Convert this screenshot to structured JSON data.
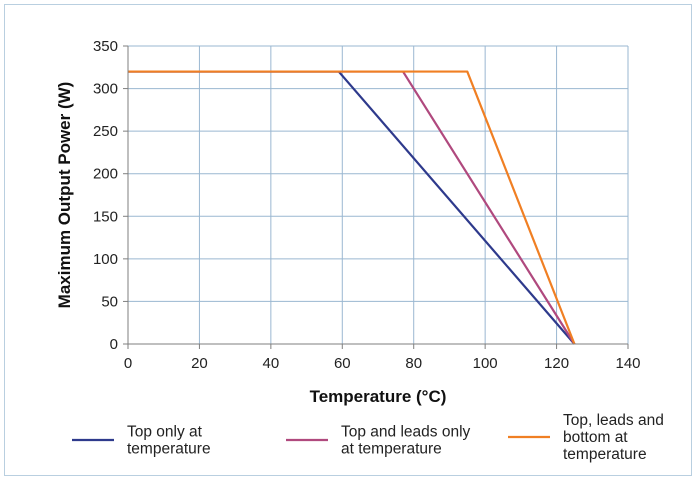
{
  "chart_data": {
    "type": "line",
    "xlabel": "Temperature (°C)",
    "ylabel": "Maximum Output Power (W)",
    "xlim": [
      0,
      140
    ],
    "ylim": [
      0,
      350
    ],
    "xticks": [
      0,
      20,
      40,
      60,
      80,
      100,
      120,
      140
    ],
    "yticks": [
      0,
      50,
      100,
      150,
      200,
      250,
      300,
      350
    ],
    "grid": true,
    "legend_position": "bottom",
    "series": [
      {
        "name": "Top only at temperature",
        "legend_lines": [
          "Top only at",
          "temperature"
        ],
        "color": "#2e3a8c",
        "x": [
          0,
          59,
          125
        ],
        "y": [
          320,
          320,
          0
        ]
      },
      {
        "name": "Top and leads only at temperature",
        "legend_lines": [
          "Top and leads only",
          "at temperature"
        ],
        "color": "#b0497e",
        "x": [
          0,
          77,
          125
        ],
        "y": [
          320,
          320,
          0
        ]
      },
      {
        "name": "Top, leads and bottom at temperature",
        "legend_lines": [
          "Top, leads and",
          "bottom at",
          "temperature"
        ],
        "color": "#f07f23",
        "x": [
          0,
          95,
          125
        ],
        "y": [
          320,
          320,
          0
        ]
      }
    ]
  }
}
